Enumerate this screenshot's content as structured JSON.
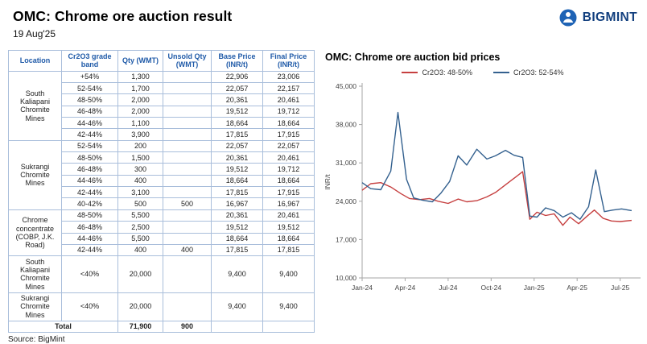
{
  "header": {
    "title": "OMC: Chrome ore auction result",
    "date": "19 Aug'25",
    "logo_text": "BIGMINT"
  },
  "source": "Source: BigMint",
  "table": {
    "columns": [
      "Location",
      "Cr2O3 grade band",
      "Qty (WMT)",
      "Unsold Qty (WMT)",
      "Base Price (INR/t)",
      "Final Price (INR/t)"
    ],
    "groups": [
      {
        "location": "South Kaliapani Chromite Mines",
        "rows": [
          {
            "band": "+54%",
            "qty": "1,300",
            "unsold": "",
            "base": "22,906",
            "final": "23,006"
          },
          {
            "band": "52-54%",
            "qty": "1,700",
            "unsold": "",
            "base": "22,057",
            "final": "22,157"
          },
          {
            "band": "48-50%",
            "qty": "2,000",
            "unsold": "",
            "base": "20,361",
            "final": "20,461"
          },
          {
            "band": "46-48%",
            "qty": "2,000",
            "unsold": "",
            "base": "19,512",
            "final": "19,712"
          },
          {
            "band": "44-46%",
            "qty": "1,100",
            "unsold": "",
            "base": "18,664",
            "final": "18,664"
          },
          {
            "band": "42-44%",
            "qty": "3,900",
            "unsold": "",
            "base": "17,815",
            "final": "17,915"
          }
        ]
      },
      {
        "location": "Sukrangi Chromite Mines",
        "rows": [
          {
            "band": "52-54%",
            "qty": "200",
            "unsold": "",
            "base": "22,057",
            "final": "22,057"
          },
          {
            "band": "48-50%",
            "qty": "1,500",
            "unsold": "",
            "base": "20,361",
            "final": "20,461"
          },
          {
            "band": "46-48%",
            "qty": "300",
            "unsold": "",
            "base": "19,512",
            "final": "19,712"
          },
          {
            "band": "44-46%",
            "qty": "400",
            "unsold": "",
            "base": "18,664",
            "final": "18,664"
          },
          {
            "band": "42-44%",
            "qty": "3,100",
            "unsold": "",
            "base": "17,815",
            "final": "17,915"
          },
          {
            "band": "40-42%",
            "qty": "500",
            "unsold": "500",
            "base": "16,967",
            "final": "16,967"
          }
        ]
      },
      {
        "location": "Chrome concentrate (COBP, J.K. Road)",
        "rows": [
          {
            "band": "48-50%",
            "qty": "5,500",
            "unsold": "",
            "base": "20,361",
            "final": "20,461"
          },
          {
            "band": "46-48%",
            "qty": "2,500",
            "unsold": "",
            "base": "19,512",
            "final": "19,512"
          },
          {
            "band": "44-46%",
            "qty": "5,500",
            "unsold": "",
            "base": "18,664",
            "final": "18,664"
          },
          {
            "band": "42-44%",
            "qty": "400",
            "unsold": "400",
            "base": "17,815",
            "final": "17,815"
          }
        ]
      },
      {
        "location": "South Kaliapani Chromite Mines",
        "rows": [
          {
            "band": "<40%",
            "qty": "20,000",
            "unsold": "",
            "base": "9,400",
            "final": "9,400"
          }
        ]
      },
      {
        "location": "Sukrangi Chromite Mines",
        "rows": [
          {
            "band": "<40%",
            "qty": "20,000",
            "unsold": "",
            "base": "9,400",
            "final": "9,400"
          }
        ]
      }
    ],
    "total": {
      "label": "Total",
      "qty": "71,900",
      "unsold": "900",
      "base": "",
      "final": ""
    }
  },
  "chart_data": {
    "type": "line",
    "title": "OMC: Chrome ore auction bid prices",
    "xlabel": "",
    "ylabel": "INR/t",
    "ylim": [
      10000,
      45000
    ],
    "grid": false,
    "legend_position": "top",
    "yticks": [
      {
        "v": 10000,
        "label": "10,000"
      },
      {
        "v": 17000,
        "label": "17,000"
      },
      {
        "v": 24000,
        "label": "24,000"
      },
      {
        "v": 31000,
        "label": "31,000"
      },
      {
        "v": 38000,
        "label": "38,000"
      },
      {
        "v": 45000,
        "label": "45,000"
      }
    ],
    "x_domain": [
      0,
      19.2
    ],
    "xticks": [
      {
        "m": 0,
        "label": "Jan-24"
      },
      {
        "m": 3,
        "label": "Apr-24"
      },
      {
        "m": 6,
        "label": "Jul-24"
      },
      {
        "m": 9,
        "label": "Oct-24"
      },
      {
        "m": 12,
        "label": "Jan-25"
      },
      {
        "m": 15,
        "label": "Apr-25"
      },
      {
        "m": 18,
        "label": "Jul-25"
      }
    ],
    "series": [
      {
        "name": "Cr2O3: 48-50%",
        "color": "#c64040",
        "points": [
          [
            0,
            26000
          ],
          [
            0.6,
            27200
          ],
          [
            1.3,
            27400
          ],
          [
            2.0,
            26600
          ],
          [
            2.7,
            25400
          ],
          [
            3.3,
            24500
          ],
          [
            4.0,
            24300
          ],
          [
            4.7,
            24500
          ],
          [
            5.3,
            24000
          ],
          [
            6.0,
            23600
          ],
          [
            6.7,
            24400
          ],
          [
            7.3,
            23900
          ],
          [
            8.0,
            24100
          ],
          [
            8.7,
            24800
          ],
          [
            9.3,
            25600
          ],
          [
            10.0,
            27000
          ],
          [
            10.7,
            28400
          ],
          [
            11.2,
            29400
          ],
          [
            11.7,
            20700
          ],
          [
            12.2,
            22000
          ],
          [
            12.8,
            21400
          ],
          [
            13.4,
            21700
          ],
          [
            14.0,
            19600
          ],
          [
            14.5,
            21100
          ],
          [
            15.1,
            19900
          ],
          [
            15.7,
            21300
          ],
          [
            16.2,
            22400
          ],
          [
            16.8,
            20900
          ],
          [
            17.4,
            20400
          ],
          [
            18.0,
            20300
          ],
          [
            18.8,
            20500
          ]
        ]
      },
      {
        "name": "Cr2O3: 52-54%",
        "color": "#34618f",
        "points": [
          [
            0,
            27400
          ],
          [
            0.6,
            26300
          ],
          [
            1.3,
            26100
          ],
          [
            2.0,
            29500
          ],
          [
            2.5,
            40200
          ],
          [
            3.1,
            28000
          ],
          [
            3.6,
            24600
          ],
          [
            4.2,
            24200
          ],
          [
            4.9,
            23900
          ],
          [
            5.5,
            25500
          ],
          [
            6.1,
            27600
          ],
          [
            6.7,
            32300
          ],
          [
            7.3,
            30600
          ],
          [
            8.0,
            33500
          ],
          [
            8.7,
            31700
          ],
          [
            9.3,
            32300
          ],
          [
            10.0,
            33300
          ],
          [
            10.6,
            32400
          ],
          [
            11.2,
            32000
          ],
          [
            11.7,
            21300
          ],
          [
            12.2,
            21100
          ],
          [
            12.8,
            22800
          ],
          [
            13.4,
            22300
          ],
          [
            14.0,
            21100
          ],
          [
            14.6,
            21900
          ],
          [
            15.2,
            20700
          ],
          [
            15.8,
            23000
          ],
          [
            16.3,
            29700
          ],
          [
            16.9,
            22100
          ],
          [
            17.5,
            22400
          ],
          [
            18.1,
            22600
          ],
          [
            18.8,
            22300
          ]
        ]
      }
    ]
  }
}
